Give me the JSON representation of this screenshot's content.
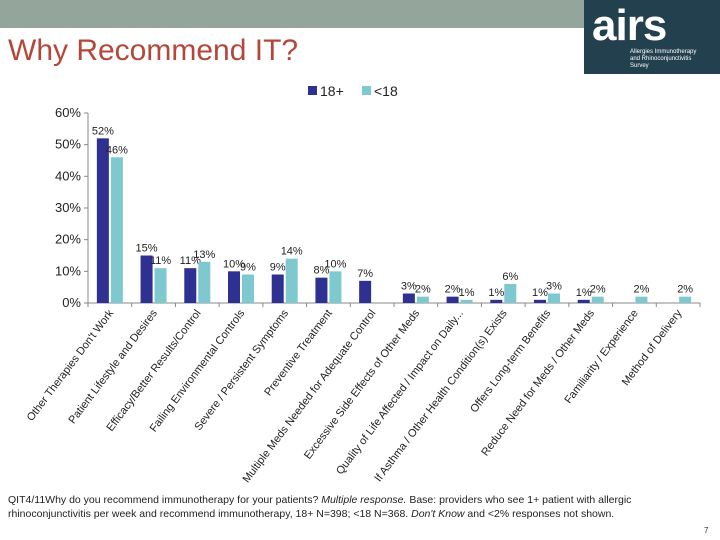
{
  "slide": {
    "title": "Why Recommend IT?",
    "page_number": "7",
    "logo": {
      "word": "airs",
      "line1": "Allergies Immunotherapy",
      "line2": "and Rhinoconjunctivitis",
      "line3": "Survey"
    },
    "footnote": {
      "part1": "QIT4/11Why do you recommend immunotherapy for your patients? ",
      "part2": "Multiple response.",
      "part3": " Base: providers who see 1+ patient with allergic rhinoconjunctivitis per week and recommend immunotherapy, 18+ N=398; <18 N=368. ",
      "part4": "Don't Know",
      "part5": " and <2% responses not shown."
    }
  },
  "colors": {
    "topbar": "#94a59c",
    "title": "#b5473a",
    "logo_bg": "#23404f",
    "series_18plus": "#2e3092",
    "series_under18": "#7ec8d0"
  },
  "chart_data": {
    "type": "bar",
    "legend_position": "top-center",
    "grid": false,
    "ylim": [
      0,
      60
    ],
    "yticks": [
      "0%",
      "10%",
      "20%",
      "30%",
      "40%",
      "50%",
      "60%"
    ],
    "categories": [
      "Other Therapies Don't Work",
      "Patient Lifestyle and Desires",
      "Efficacy/Better Results/Control",
      "Failing Environmental Controls",
      "Severe / Persistent Symptoms",
      "Preventive Treatment",
      "Multiple Meds Needed for Adequate Control",
      "Excessive Side Effects of Other Meds",
      "Quality of Life Affected / Impact on Daily...",
      "If Asthma / Other Health Condition(s) Exists",
      "Offers Long-term Benefits",
      "Reduce Need for Meds / Other Meds",
      "Familiarity / Experience",
      "Method of Delivery"
    ],
    "series": [
      {
        "name": "18+",
        "values": [
          52,
          15,
          11,
          10,
          9,
          8,
          7,
          3,
          2,
          1,
          1,
          1,
          null,
          null
        ],
        "labels": [
          "52%",
          "15%",
          "11%",
          "10%",
          "9%",
          "8%",
          "7%",
          "3%",
          "2%",
          "1%",
          "1%",
          "1%",
          "",
          ""
        ]
      },
      {
        "name": "<18",
        "values": [
          46,
          11,
          13,
          9,
          14,
          10,
          null,
          2,
          1,
          6,
          3,
          2,
          2,
          2
        ],
        "labels": [
          "46%",
          "11%",
          "13%",
          "9%",
          "14%",
          "10%",
          "",
          "2%",
          "1%",
          "6%",
          "3%",
          "2%",
          "2%",
          "2%"
        ]
      }
    ]
  }
}
